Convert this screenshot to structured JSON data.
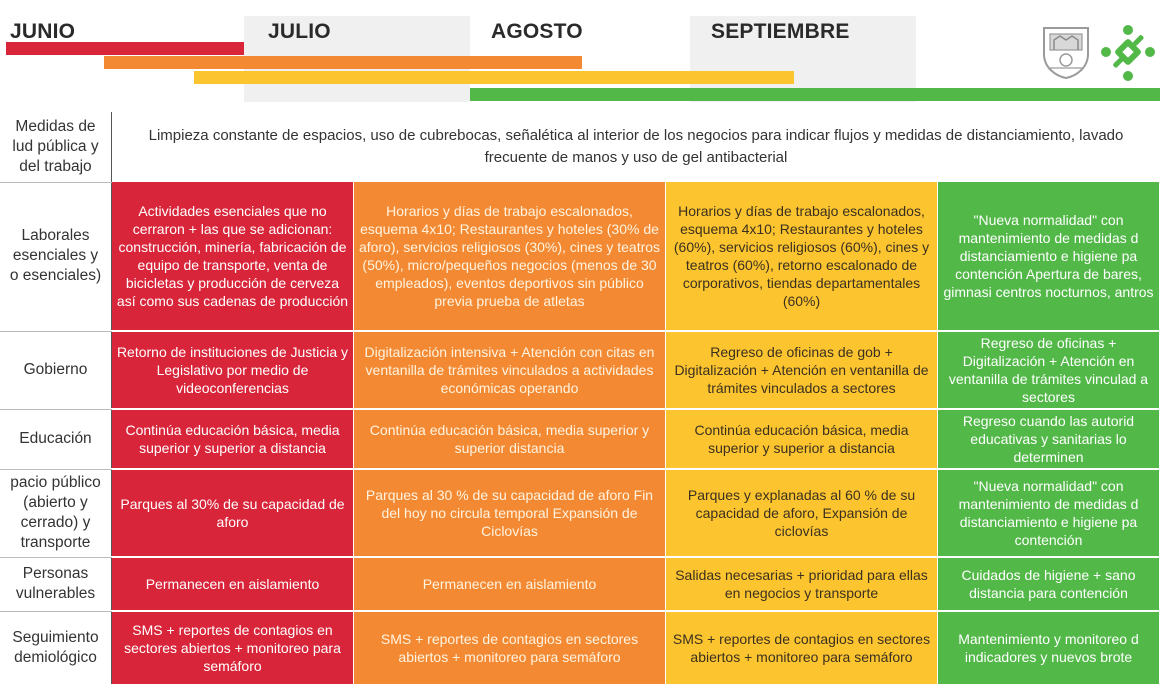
{
  "months": [
    {
      "label": "JUNIO"
    },
    {
      "label": "JULIO"
    },
    {
      "label": "AGOSTO"
    },
    {
      "label": "SEPTIEMBRE"
    }
  ],
  "colors": {
    "red": "#d9253a",
    "orange": "#f38a33",
    "yellow": "#fcc52f",
    "green": "#52b848"
  },
  "logos": [
    "cdmx-shield-icon",
    "cdmx-emblem-icon"
  ],
  "rows": {
    "salud": {
      "label": "Medidas de\nlud pública y\ndel trabajo",
      "text": "Limpieza constante de espacios, uso de cubrebocas, señalética al interior de los negocios para indicar flujos y medidas de distanciamiento, lavado frecuente de manos y uso de gel antibacterial"
    },
    "laborales": {
      "label": "Laborales\nesenciales y\no esenciales)",
      "red": "Actividades esenciales que no cerraron + las que se adicionan: construcción, minería, fabricación de equipo de transporte, venta de bicicletas y producción de cerveza así como sus cadenas de producción",
      "orange": "Horarios y días de trabajo escalonados, esquema 4x10; Restaurantes y hoteles (30% de aforo), servicios religiosos (30%), cines y teatros (50%), micro/pequeños negocios (menos de 30 empleados), eventos deportivos sin público previa prueba de atletas",
      "yellow": "Horarios y días de trabajo escalonados, esquema 4x10; Restaurantes y hoteles (60%), servicios religiosos (60%), cines y teatros (60%), retorno escalonado de corporativos, tiendas departamentales (60%)",
      "green": "\"Nueva normalidad\" con mantenimiento de medidas d distanciamiento e higiene pa contención Apertura de bares, gimnasi centros nocturnos, antros"
    },
    "gobierno": {
      "label": "Gobierno",
      "red": "Retorno de instituciones de Justicia y Legislativo por medio de videoconferencias",
      "orange": "Digitalización intensiva + Atención con citas en ventanilla de trámites vinculados a actividades económicas operando",
      "yellow": "Regreso de oficinas de gob + Digitalización + Atención en ventanilla de trámites vinculados a sectores",
      "green": "Regreso de oficinas + Digitalización + Atención en ventanilla de trámites vinculad a sectores"
    },
    "educacion": {
      "label": "Educación",
      "red": "Continúa educación básica, media superior y superior a distancia",
      "orange": "Continúa educación básica, media superior y superior distancia",
      "yellow": "Continúa educación básica, media superior y superior a distancia",
      "green": "Regreso cuando las autorid educativas y sanitarias lo determinen"
    },
    "espacio": {
      "label": "pacio público\n(abierto y\ncerrado) y\ntransporte",
      "red": "Parques al 30% de su capacidad de aforo",
      "orange": "Parques al 30 % de su capacidad de aforo Fin del hoy no circula temporal Expansión de Ciclovías",
      "yellow": "Parques y explanadas al 60 % de su capacidad de aforo, Expansión de ciclovías",
      "green": "\"Nueva normalidad\" con mantenimiento de medidas d distanciamiento e higiene pa contención"
    },
    "vulnerables": {
      "label": "Personas\nvulnerables",
      "red": "Permanecen en aislamiento",
      "orange": "Permanecen en aislamiento",
      "yellow": "Salidas necesarias + prioridad para ellas en negocios y transporte",
      "green": "Cuidados de higiene + sano distancia para contención"
    },
    "seguimiento": {
      "label": "Seguimiento\ndemiológico",
      "red": "SMS + reportes de contagios en sectores abiertos + monitoreo para semáforo",
      "orange": "SMS + reportes de contagios en sectores abiertos + monitoreo para semáforo",
      "yellow": "SMS + reportes de contagios en sectores abiertos + monitoreo para semáforo",
      "green": "Mantenimiento y monitoreo d indicadores y nuevos brote"
    }
  }
}
